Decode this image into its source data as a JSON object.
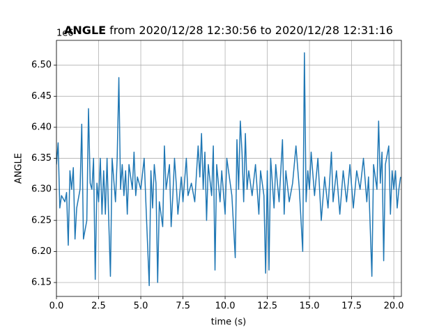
{
  "chart_data": {
    "type": "line",
    "title_bold": "ANGLE",
    "title": "from 2020/12/28 12:30:56 to 2020/12/28 12:31:16",
    "x_label": "time (s)",
    "y_label": "ANGLE",
    "y_offset_label": "1e6",
    "color": "#1f77b4",
    "grid": true,
    "xlim": [
      0,
      20.45
    ],
    "ylim": [
      6.1276,
      6.54
    ],
    "xticks": [
      {
        "value": 0,
        "label": "0.0"
      },
      2.5,
      {
        "value": 5,
        "label": "5.0"
      },
      7.5,
      {
        "value": 10,
        "label": "10.0"
      },
      12.5,
      {
        "value": 15,
        "label": "15.0"
      },
      17.5,
      {
        "value": 20,
        "label": "20.0"
      }
    ],
    "yticks": [
      6.15,
      {
        "value": 6.2,
        "label": "6.20"
      },
      6.25,
      {
        "value": 6.3,
        "label": "6.30"
      },
      6.35,
      {
        "value": 6.4,
        "label": "6.40"
      },
      6.45,
      {
        "value": 6.5,
        "label": "6.50"
      }
    ],
    "x": [
      0,
      0.1,
      0.2,
      0.3,
      0.5,
      0.6,
      0.7,
      0.8,
      0.9,
      1.0,
      1.1,
      1.2,
      1.4,
      1.5,
      1.6,
      1.8,
      1.9,
      2.0,
      2.1,
      2.2,
      2.3,
      2.4,
      2.5,
      2.6,
      2.7,
      2.8,
      2.9,
      3.0,
      3.1,
      3.2,
      3.3,
      3.5,
      3.6,
      3.7,
      3.8,
      3.9,
      4.0,
      4.1,
      4.2,
      4.3,
      4.5,
      4.6,
      4.7,
      4.8,
      5.0,
      5.2,
      5.3,
      5.5,
      5.6,
      5.7,
      5.8,
      5.9,
      6.0,
      6.1,
      6.3,
      6.4,
      6.5,
      6.7,
      6.8,
      6.9,
      7.0,
      7.1,
      7.2,
      7.4,
      7.5,
      7.7,
      7.8,
      8.0,
      8.2,
      8.4,
      8.5,
      8.6,
      8.7,
      8.8,
      8.9,
      9.0,
      9.2,
      9.3,
      9.4,
      9.5,
      9.7,
      9.8,
      10.0,
      10.1,
      10.3,
      10.4,
      10.6,
      10.7,
      10.8,
      10.9,
      11.0,
      11.1,
      11.2,
      11.3,
      11.4,
      11.6,
      11.8,
      12.0,
      12.1,
      12.3,
      12.4,
      12.5,
      12.6,
      12.7,
      12.9,
      13.0,
      13.2,
      13.4,
      13.5,
      13.6,
      13.8,
      14.0,
      14.2,
      14.4,
      14.6,
      14.7,
      14.8,
      14.9,
      15.0,
      15.1,
      15.3,
      15.5,
      15.7,
      15.9,
      16.1,
      16.3,
      16.4,
      16.6,
      16.8,
      17.0,
      17.2,
      17.4,
      17.6,
      17.8,
      18.0,
      18.2,
      18.4,
      18.5,
      18.7,
      18.8,
      19.0,
      19.1,
      19.2,
      19.3,
      19.4,
      19.5,
      19.7,
      19.8,
      19.9,
      20.0,
      20.1,
      20.2,
      20.3,
      20.4
    ],
    "values": [
      6.34,
      6.375,
      6.27,
      6.29,
      6.28,
      6.295,
      6.21,
      6.33,
      6.3,
      6.335,
      6.22,
      6.27,
      6.3,
      6.405,
      6.22,
      6.25,
      6.43,
      6.31,
      6.3,
      6.35,
      6.155,
      6.31,
      6.28,
      6.35,
      6.26,
      6.33,
      6.26,
      6.35,
      6.25,
      6.16,
      6.35,
      6.28,
      6.35,
      6.48,
      6.3,
      6.34,
      6.29,
      6.33,
      6.26,
      6.34,
      6.3,
      6.36,
      6.29,
      6.32,
      6.3,
      6.35,
      6.28,
      6.145,
      6.33,
      6.27,
      6.34,
      6.31,
      6.15,
      6.28,
      6.24,
      6.37,
      6.3,
      6.34,
      6.24,
      6.29,
      6.35,
      6.31,
      6.26,
      6.32,
      6.28,
      6.35,
      6.29,
      6.31,
      6.28,
      6.37,
      6.32,
      6.39,
      6.3,
      6.36,
      6.25,
      6.34,
      6.29,
      6.37,
      6.17,
      6.34,
      6.28,
      6.33,
      6.26,
      6.35,
      6.31,
      6.29,
      6.19,
      6.38,
      6.3,
      6.41,
      6.36,
      6.28,
      6.39,
      6.3,
      6.33,
      6.29,
      6.34,
      6.26,
      6.33,
      6.29,
      6.165,
      6.33,
      6.17,
      6.35,
      6.27,
      6.34,
      6.28,
      6.38,
      6.26,
      6.33,
      6.28,
      6.31,
      6.37,
      6.3,
      6.2,
      6.52,
      6.28,
      6.33,
      6.3,
      6.36,
      6.29,
      6.35,
      6.25,
      6.32,
      6.27,
      6.36,
      6.28,
      6.33,
      6.26,
      6.33,
      6.28,
      6.34,
      6.27,
      6.33,
      6.3,
      6.35,
      6.28,
      6.32,
      6.16,
      6.34,
      6.3,
      6.41,
      6.31,
      6.36,
      6.185,
      6.34,
      6.37,
      6.26,
      6.33,
      6.3,
      6.33,
      6.27,
      6.3,
      6.32
    ]
  }
}
